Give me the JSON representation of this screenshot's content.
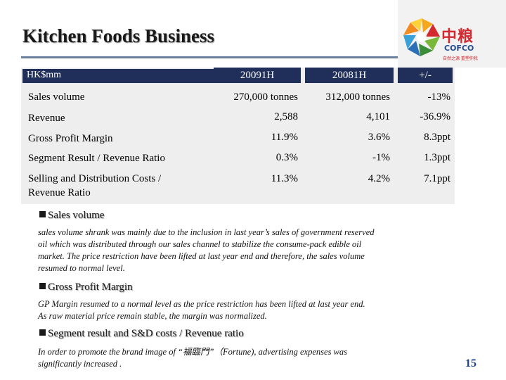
{
  "title": "Kitchen Foods Business",
  "logo": {
    "chinese": "中粮",
    "english": "COFCO",
    "tagline": "自然之源 重塑你我"
  },
  "table": {
    "unit_label": "HK$mm",
    "headers": [
      "20091H",
      "20081H",
      "+/-"
    ],
    "rows": [
      {
        "label": "Sales volume",
        "v2009": "270,000 tonnes",
        "v2008": "312,000 tonnes",
        "change": "-13%"
      },
      {
        "label": "Revenue",
        "v2009": "2,588",
        "v2008": "4,101",
        "change": "-36.9%"
      },
      {
        "label": "Gross Profit Margin",
        "v2009": "11.9%",
        "v2008": "3.6%",
        "change": "8.3ppt"
      },
      {
        "label": "Segment Result / Revenue Ratio",
        "v2009": "0.3%",
        "v2008": "-1%",
        "change": "1.3ppt"
      },
      {
        "label_line1": "Selling and Distribution Costs /",
        "label_line2": "Revenue Ratio",
        "v2009": "11.3%",
        "v2008": "4.2%",
        "change": "7.1ppt"
      }
    ]
  },
  "notes": [
    {
      "heading": "Sales volume",
      "lines": [
        "sales volume shrank was mainly due to the inclusion in last year’s sales of government reserved",
        "oil which was distributed through our sales channel to stabilize the consume-pack edible oil",
        "market. The price restriction have been lifted at last year end and therefore, the sales volume",
        "resumed to normal level."
      ]
    },
    {
      "heading": "Gross Profit Margin",
      "lines": [
        "GP Margin resumed to a normal level as the price restriction has been lifted at last year end.",
        "As raw material price remain stable, the margin was normalized."
      ]
    },
    {
      "heading": "Segment result and S&D costs / Revenue ratio",
      "lines": [
        " In order to promote the brand image of “福臨門”（Fortune), advertising expenses was",
        "significantly increased ."
      ]
    }
  ],
  "page_number": "15"
}
